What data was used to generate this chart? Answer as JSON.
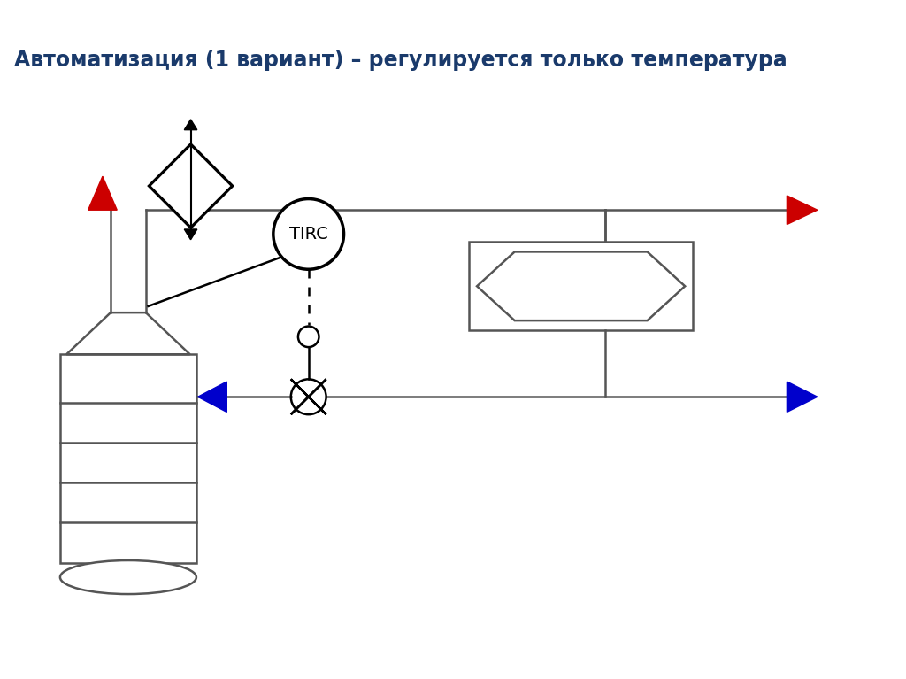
{
  "title": "Автоматизация (1 вариант) – регулируется только температура",
  "title_color": "#1a3a6b",
  "title_fontsize": 17,
  "bg_color": "#ffffff",
  "line_color": "#555555",
  "line_width": 1.8,
  "red_color": "#cc0000",
  "blue_color": "#0000cc",
  "tirc_text": "TIRC",
  "tirc_fontsize": 14,
  "figsize": [
    10.24,
    7.67
  ],
  "dpi": 100
}
